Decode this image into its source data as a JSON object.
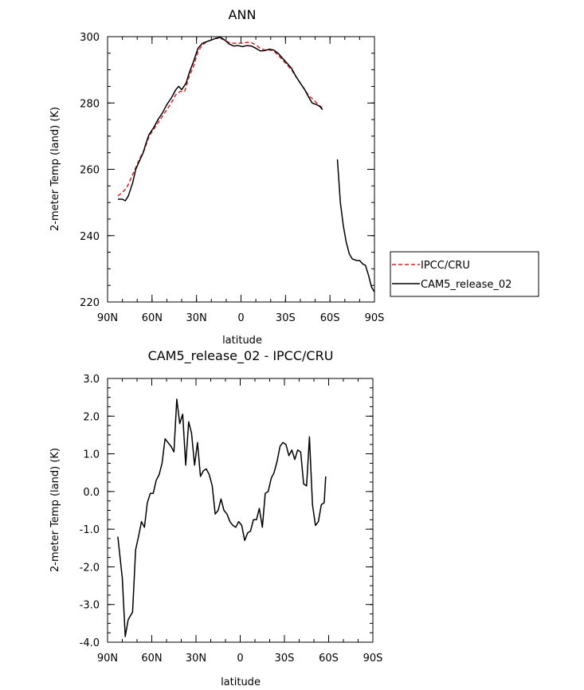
{
  "chart_data": [
    {
      "type": "line",
      "title": "ANN",
      "xlabel": "latitude",
      "ylabel": "2-meter Temp (land) (K)",
      "xlim": [
        90,
        -90
      ],
      "ylim": [
        220,
        300
      ],
      "xticks": [
        {
          "value": 90,
          "label": "90N"
        },
        {
          "value": 60,
          "label": "60N"
        },
        {
          "value": 30,
          "label": "30N"
        },
        {
          "value": 0,
          "label": "0"
        },
        {
          "value": -30,
          "label": "30S"
        },
        {
          "value": -60,
          "label": "60S"
        },
        {
          "value": -90,
          "label": "90S"
        }
      ],
      "yticks": [
        {
          "value": 300,
          "label": "300"
        },
        {
          "value": 280,
          "label": "280"
        },
        {
          "value": 260,
          "label": "260"
        },
        {
          "value": 240,
          "label": "240"
        },
        {
          "value": 220,
          "label": "220"
        }
      ],
      "legend": [
        {
          "name": "IPCC/CRU",
          "color": "#dd2222",
          "dash": "dashed"
        },
        {
          "name": "CAM5_release_02",
          "color": "#000000",
          "dash": "solid"
        }
      ],
      "series": [
        {
          "name": "IPCC/CRU",
          "color": "#dd2222",
          "dash": "dashed",
          "segments": [
            [
              [
                83,
                252
              ],
              [
                80,
                253
              ],
              [
                77,
                254.5
              ],
              [
                74,
                257.5
              ],
              [
                71,
                260.5
              ],
              [
                68,
                263.5
              ],
              [
                65,
                266
              ],
              [
                62,
                270
              ],
              [
                59,
                272
              ],
              [
                56,
                274
              ],
              [
                53,
                276
              ],
              [
                50,
                278
              ],
              [
                47,
                280
              ],
              [
                44,
                282.5
              ],
              [
                41,
                283.5
              ],
              [
                38,
                283.5
              ],
              [
                35,
                288
              ],
              [
                32,
                291
              ],
              [
                29,
                295.5
              ],
              [
                26,
                297.5
              ],
              [
                23,
                298.5
              ],
              [
                20,
                299
              ],
              [
                17,
                299.5
              ],
              [
                14,
                299.5
              ],
              [
                11,
                299
              ],
              [
                8,
                298.2
              ],
              [
                5,
                298
              ],
              [
                2,
                298
              ],
              [
                -1,
                298
              ],
              [
                -4,
                298.3
              ],
              [
                -7,
                298.2
              ],
              [
                -10,
                297.5
              ],
              [
                -13,
                296.5
              ],
              [
                -16,
                296
              ],
              [
                -19,
                296
              ],
              [
                -22,
                295.7
              ],
              [
                -25,
                294.5
              ],
              [
                -28,
                293
              ],
              [
                -31,
                291.5
              ],
              [
                -34,
                290
              ],
              [
                -37,
                288
              ],
              [
                -40,
                286
              ],
              [
                -43,
                284
              ],
              [
                -46,
                282
              ],
              [
                -49,
                281
              ],
              [
                -52,
                279.5
              ],
              [
                -55,
                278.5
              ]
            ]
          ]
        },
        {
          "name": "CAM5_release_02",
          "color": "#000000",
          "dash": "solid",
          "segments": [
            [
              [
                83,
                251
              ],
              [
                80,
                251
              ],
              [
                78,
                250.5
              ],
              [
                76,
                252
              ],
              [
                73,
                256
              ],
              [
                71,
                260
              ],
              [
                68,
                263
              ],
              [
                66,
                265
              ],
              [
                64,
                268
              ],
              [
                62,
                270.5
              ],
              [
                59,
                272.5
              ],
              [
                56,
                275
              ],
              [
                53,
                277
              ],
              [
                50,
                279.5
              ],
              [
                47,
                281.5
              ],
              [
                44,
                284
              ],
              [
                42,
                285
              ],
              [
                40,
                284
              ],
              [
                37,
                286
              ],
              [
                35,
                289
              ],
              [
                32,
                292.5
              ],
              [
                29,
                296.5
              ],
              [
                26,
                298
              ],
              [
                23,
                298.5
              ],
              [
                20,
                299
              ],
              [
                17,
                299.5
              ],
              [
                14,
                299.8
              ],
              [
                11,
                299
              ],
              [
                8,
                297.8
              ],
              [
                5,
                297.2
              ],
              [
                2,
                297.3
              ],
              [
                -1,
                297
              ],
              [
                -4,
                297.3
              ],
              [
                -7,
                297.2
              ],
              [
                -10,
                296.5
              ],
              [
                -13,
                295.7
              ],
              [
                -16,
                295.8
              ],
              [
                -19,
                296.2
              ],
              [
                -22,
                296
              ],
              [
                -25,
                295
              ],
              [
                -28,
                293.5
              ],
              [
                -31,
                292
              ],
              [
                -34,
                290.5
              ],
              [
                -37,
                288
              ],
              [
                -40,
                286
              ],
              [
                -43,
                284
              ],
              [
                -46,
                281.5
              ],
              [
                -48,
                280
              ],
              [
                -51,
                279.5
              ],
              [
                -53,
                279
              ],
              [
                -55,
                278
              ]
            ],
            [
              [
                -65,
                263
              ],
              [
                -67,
                250
              ],
              [
                -69,
                243
              ],
              [
                -71,
                238
              ],
              [
                -73,
                234.5
              ],
              [
                -75,
                233
              ],
              [
                -78,
                232.5
              ],
              [
                -80,
                232.5
              ],
              [
                -82,
                231.5
              ],
              [
                -84,
                231
              ],
              [
                -86,
                228
              ],
              [
                -88,
                224.5
              ],
              [
                -90,
                223
              ]
            ]
          ]
        }
      ]
    },
    {
      "type": "line",
      "title": "CAM5_release_02 - IPCC/CRU",
      "xlabel": "latitude",
      "ylabel": "2-meter Temp (land) (K)",
      "xlim": [
        90,
        -90
      ],
      "ylim": [
        -4.0,
        3.0
      ],
      "xticks": [
        {
          "value": 90,
          "label": "90N"
        },
        {
          "value": 60,
          "label": "60N"
        },
        {
          "value": 30,
          "label": "30N"
        },
        {
          "value": 0,
          "label": "0"
        },
        {
          "value": -30,
          "label": "30S"
        },
        {
          "value": -60,
          "label": "60S"
        },
        {
          "value": -90,
          "label": "90S"
        }
      ],
      "yticks": [
        {
          "value": 3.0,
          "label": "3.0"
        },
        {
          "value": 2.0,
          "label": "2.0"
        },
        {
          "value": 1.0,
          "label": "1.0"
        },
        {
          "value": 0.0,
          "label": "0.0"
        },
        {
          "value": -1.0,
          "label": "-1.0"
        },
        {
          "value": -2.0,
          "label": "-2.0"
        },
        {
          "value": -3.0,
          "label": "-3.0"
        },
        {
          "value": -4.0,
          "label": "-4.0"
        }
      ],
      "series": [
        {
          "name": "CAM5_release_02 - IPCC/CRU",
          "color": "#000000",
          "dash": "solid",
          "segments": [
            [
              [
                83,
                -1.2
              ],
              [
                80,
                -2.3
              ],
              [
                78,
                -3.85
              ],
              [
                76,
                -3.4
              ],
              [
                73,
                -3.2
              ],
              [
                71,
                -1.55
              ],
              [
                69,
                -1.2
              ],
              [
                67,
                -0.8
              ],
              [
                65,
                -0.95
              ],
              [
                63,
                -0.3
              ],
              [
                61,
                -0.05
              ],
              [
                59,
                -0.05
              ],
              [
                57,
                0.3
              ],
              [
                55,
                0.45
              ],
              [
                53,
                0.75
              ],
              [
                51,
                1.4
              ],
              [
                49,
                1.3
              ],
              [
                47,
                1.2
              ],
              [
                45,
                1.05
              ],
              [
                43,
                2.45
              ],
              [
                41,
                1.8
              ],
              [
                39,
                2.05
              ],
              [
                37,
                0.7
              ],
              [
                35,
                1.85
              ],
              [
                33,
                1.55
              ],
              [
                31,
                0.7
              ],
              [
                29,
                1.3
              ],
              [
                27,
                0.4
              ],
              [
                25,
                0.55
              ],
              [
                23,
                0.6
              ],
              [
                21,
                0.45
              ],
              [
                19,
                0.15
              ],
              [
                17,
                -0.6
              ],
              [
                15,
                -0.5
              ],
              [
                13,
                -0.2
              ],
              [
                11,
                -0.5
              ],
              [
                9,
                -0.6
              ],
              [
                7,
                -0.8
              ],
              [
                5,
                -0.9
              ],
              [
                3,
                -0.95
              ],
              [
                1,
                -0.8
              ],
              [
                -1,
                -0.9
              ],
              [
                -3,
                -1.3
              ],
              [
                -5,
                -1.1
              ],
              [
                -7,
                -1.05
              ],
              [
                -9,
                -0.75
              ],
              [
                -11,
                -0.75
              ],
              [
                -13,
                -0.45
              ],
              [
                -15,
                -0.95
              ],
              [
                -17,
                -0.05
              ],
              [
                -19,
                0.0
              ],
              [
                -21,
                0.35
              ],
              [
                -23,
                0.5
              ],
              [
                -25,
                0.8
              ],
              [
                -27,
                1.2
              ],
              [
                -29,
                1.3
              ],
              [
                -31,
                1.25
              ],
              [
                -33,
                0.95
              ],
              [
                -35,
                1.1
              ],
              [
                -37,
                0.85
              ],
              [
                -39,
                1.1
              ],
              [
                -41,
                1.05
              ],
              [
                -43,
                0.2
              ],
              [
                -45,
                0.15
              ],
              [
                -47,
                1.45
              ],
              [
                -49,
                -0.35
              ],
              [
                -51,
                -0.9
              ],
              [
                -53,
                -0.8
              ],
              [
                -55,
                -0.35
              ],
              [
                -57,
                -0.3
              ],
              [
                -58,
                0.4
              ]
            ]
          ]
        }
      ]
    }
  ]
}
